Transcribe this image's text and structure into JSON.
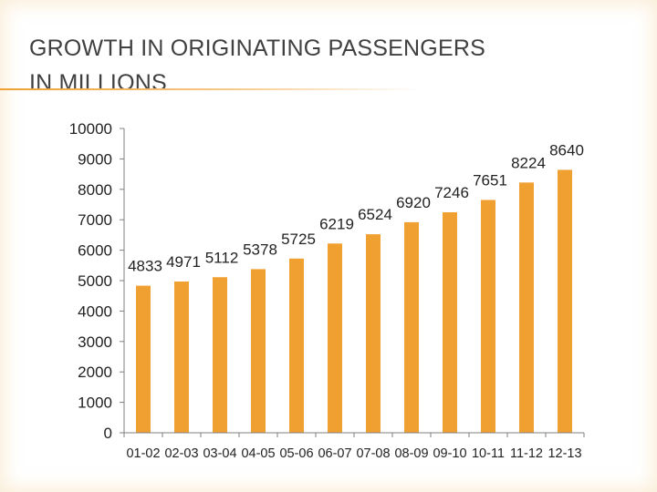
{
  "slide": {
    "title": "GROWTH IN ORIGINATING PASSENGERS\nIN MILLIONS"
  },
  "chart_data": {
    "type": "bar",
    "title": "",
    "xlabel": "",
    "ylabel": "",
    "categories": [
      "01-02",
      "02-03",
      "03-04",
      "04-05",
      "05-06",
      "06-07",
      "07-08",
      "08-09",
      "09-10",
      "10-11",
      "11-12",
      "12-13"
    ],
    "values": [
      4833,
      4971,
      5112,
      5378,
      5725,
      6219,
      6524,
      6920,
      7246,
      7651,
      8224,
      8640
    ],
    "ylim": [
      0,
      10000
    ],
    "yticks": [
      0,
      1000,
      2000,
      3000,
      4000,
      5000,
      6000,
      7000,
      8000,
      9000,
      10000
    ],
    "grid": false,
    "legend": "none",
    "data_labels": true,
    "bar_color": "#f0a030",
    "axis_color": "#7f7f7f",
    "text_color": "#222222"
  }
}
